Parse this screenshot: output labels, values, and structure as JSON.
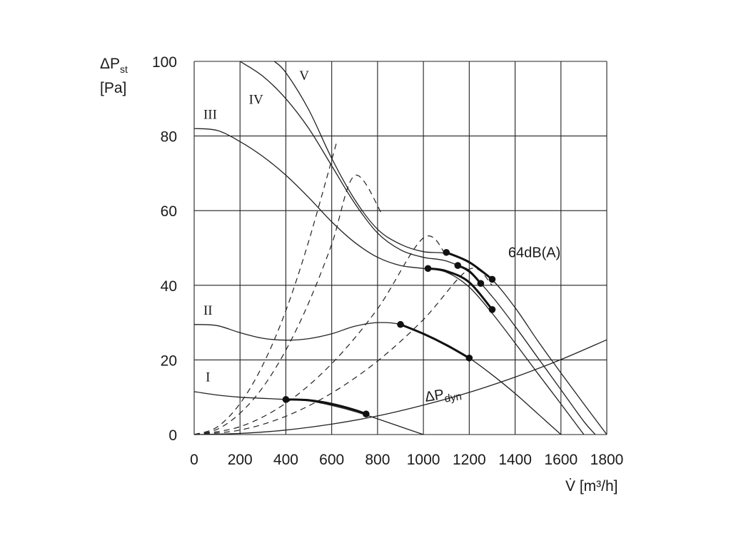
{
  "chart_data": {
    "type": "line",
    "xlabel": "V̇ [m³/h]",
    "ylabel": [
      "ΔPst",
      "[Pa]"
    ],
    "xlim": [
      0,
      1800
    ],
    "ylim": [
      0,
      100
    ],
    "xticks": [
      "0",
      "200",
      "400",
      "600",
      "800",
      "1000",
      "1200",
      "1400",
      "1600",
      "1800"
    ],
    "yticks": [
      "0",
      "20",
      "40",
      "60",
      "80",
      "100"
    ],
    "grid": true,
    "series": [
      {
        "name": "I",
        "kind": "fan",
        "x": [
          0,
          100,
          200,
          300,
          400,
          500,
          600,
          700,
          800,
          900,
          1000
        ],
        "y": [
          11.5,
          10.6,
          10.0,
          9.7,
          9.4,
          9.0,
          7.8,
          6.2,
          4.2,
          2.1,
          0
        ]
      },
      {
        "name": "II",
        "kind": "fan",
        "x": [
          0,
          100,
          200,
          300,
          400,
          500,
          600,
          700,
          800,
          900,
          1000,
          1100,
          1200,
          1300,
          1400,
          1500,
          1600
        ],
        "y": [
          29.5,
          29.2,
          27.3,
          25.8,
          25.3,
          25.7,
          27.0,
          29.0,
          30.0,
          29.5,
          27.0,
          24.0,
          20.5,
          16.0,
          11.0,
          5.5,
          0
        ]
      },
      {
        "name": "III",
        "kind": "fan",
        "x": [
          0,
          100,
          200,
          300,
          400,
          500,
          600,
          700,
          800,
          900,
          1000,
          1100,
          1200,
          1300,
          1400,
          1500,
          1600,
          1700
        ],
        "y": [
          82,
          81.5,
          78.5,
          74.5,
          69.5,
          63.5,
          57.0,
          51.5,
          47.5,
          45.3,
          44.5,
          43.5,
          39.5,
          32.5,
          24.5,
          16.3,
          8.2,
          0
        ]
      },
      {
        "name": "IV",
        "kind": "fan",
        "x": [
          200,
          300,
          400,
          500,
          600,
          700,
          800,
          900,
          1000,
          1100,
          1200,
          1300,
          1400,
          1500,
          1600,
          1700,
          1750
        ],
        "y": [
          100,
          96,
          90,
          82,
          72,
          62,
          54,
          49.5,
          47.5,
          46.5,
          43.5,
          37.0,
          29.0,
          20.5,
          12.0,
          3.5,
          0
        ]
      },
      {
        "name": "V",
        "kind": "fan",
        "x": [
          350,
          400,
          500,
          600,
          700,
          800,
          900,
          1000,
          1100,
          1200,
          1300,
          1400,
          1500,
          1600,
          1700,
          1800
        ],
        "y": [
          100,
          97,
          87,
          74,
          63,
          55,
          51,
          49,
          48.5,
          46.0,
          41.5,
          34.0,
          25.0,
          16.5,
          8.2,
          0
        ]
      },
      {
        "name": "ΔPdyn",
        "kind": "system",
        "x": [
          0,
          200,
          400,
          600,
          800,
          1000,
          1200,
          1400,
          1600,
          1800
        ],
        "y": [
          0,
          0.3,
          1.2,
          2.8,
          5.0,
          7.9,
          11.3,
          15.4,
          20.1,
          25.4
        ]
      }
    ],
    "system_lines": [
      {
        "x": [
          0,
          100,
          200,
          300,
          400,
          500,
          620
        ],
        "y": [
          0,
          2.0,
          8.3,
          18.7,
          33.2,
          51.9,
          78.0
        ]
      },
      {
        "x": [
          0,
          100,
          200,
          300,
          400,
          500,
          600,
          700,
          820
        ],
        "y": [
          0,
          1.4,
          5.7,
          12.7,
          22.6,
          35.4,
          51.0,
          69.4,
          59.0
        ]
      },
      {
        "x": [
          0,
          200,
          400,
          600,
          800,
          1000,
          1100
        ],
        "y": [
          0,
          2.1,
          8.4,
          19.0,
          33.7,
          52.7,
          48.0
        ]
      },
      {
        "x": [
          0,
          200,
          400,
          600,
          800,
          1000,
          1200,
          1300
        ],
        "y": [
          0,
          1.2,
          4.9,
          11.1,
          19.7,
          30.8,
          44.3,
          40.0
        ]
      }
    ],
    "noise_segments": [
      {
        "x": [
          400,
          500,
          600,
          700,
          750
        ],
        "y": [
          9.4,
          9.2,
          8.2,
          6.6,
          5.5
        ]
      },
      {
        "x": [
          900,
          1000,
          1100,
          1200
        ],
        "y": [
          29.5,
          27.0,
          24.0,
          20.5
        ]
      },
      {
        "x": [
          1020,
          1100,
          1200,
          1300
        ],
        "y": [
          44.5,
          43.8,
          40.8,
          33.5
        ]
      },
      {
        "x": [
          1150,
          1200,
          1250
        ],
        "y": [
          45.3,
          43.8,
          40.5
        ]
      },
      {
        "x": [
          1100,
          1200,
          1300
        ],
        "y": [
          48.8,
          46.2,
          41.6
        ]
      }
    ],
    "noise_points": [
      {
        "x": 400,
        "y": 9.4
      },
      {
        "x": 750,
        "y": 5.5
      },
      {
        "x": 900,
        "y": 29.5
      },
      {
        "x": 1200,
        "y": 20.5
      },
      {
        "x": 1020,
        "y": 44.5
      },
      {
        "x": 1300,
        "y": 33.5
      },
      {
        "x": 1150,
        "y": 45.3
      },
      {
        "x": 1250,
        "y": 40.5
      },
      {
        "x": 1100,
        "y": 48.8
      },
      {
        "x": 1300,
        "y": 41.6
      }
    ],
    "curve_labels": [
      {
        "text": "I",
        "x": 60,
        "y": 14.2
      },
      {
        "text": "II",
        "x": 60,
        "y": 32.1
      },
      {
        "text": "III",
        "x": 70,
        "y": 84.6
      },
      {
        "text": "IV",
        "x": 270,
        "y": 88.6
      },
      {
        "text": "V",
        "x": 480,
        "y": 95.0
      }
    ],
    "annotations": [
      {
        "text": "64dB(A)",
        "x": 1370,
        "y": 47.5
      }
    ],
    "dyn_label": {
      "main": "ΔP",
      "sub": "dyn",
      "x": 1010,
      "y": 8.8
    }
  }
}
